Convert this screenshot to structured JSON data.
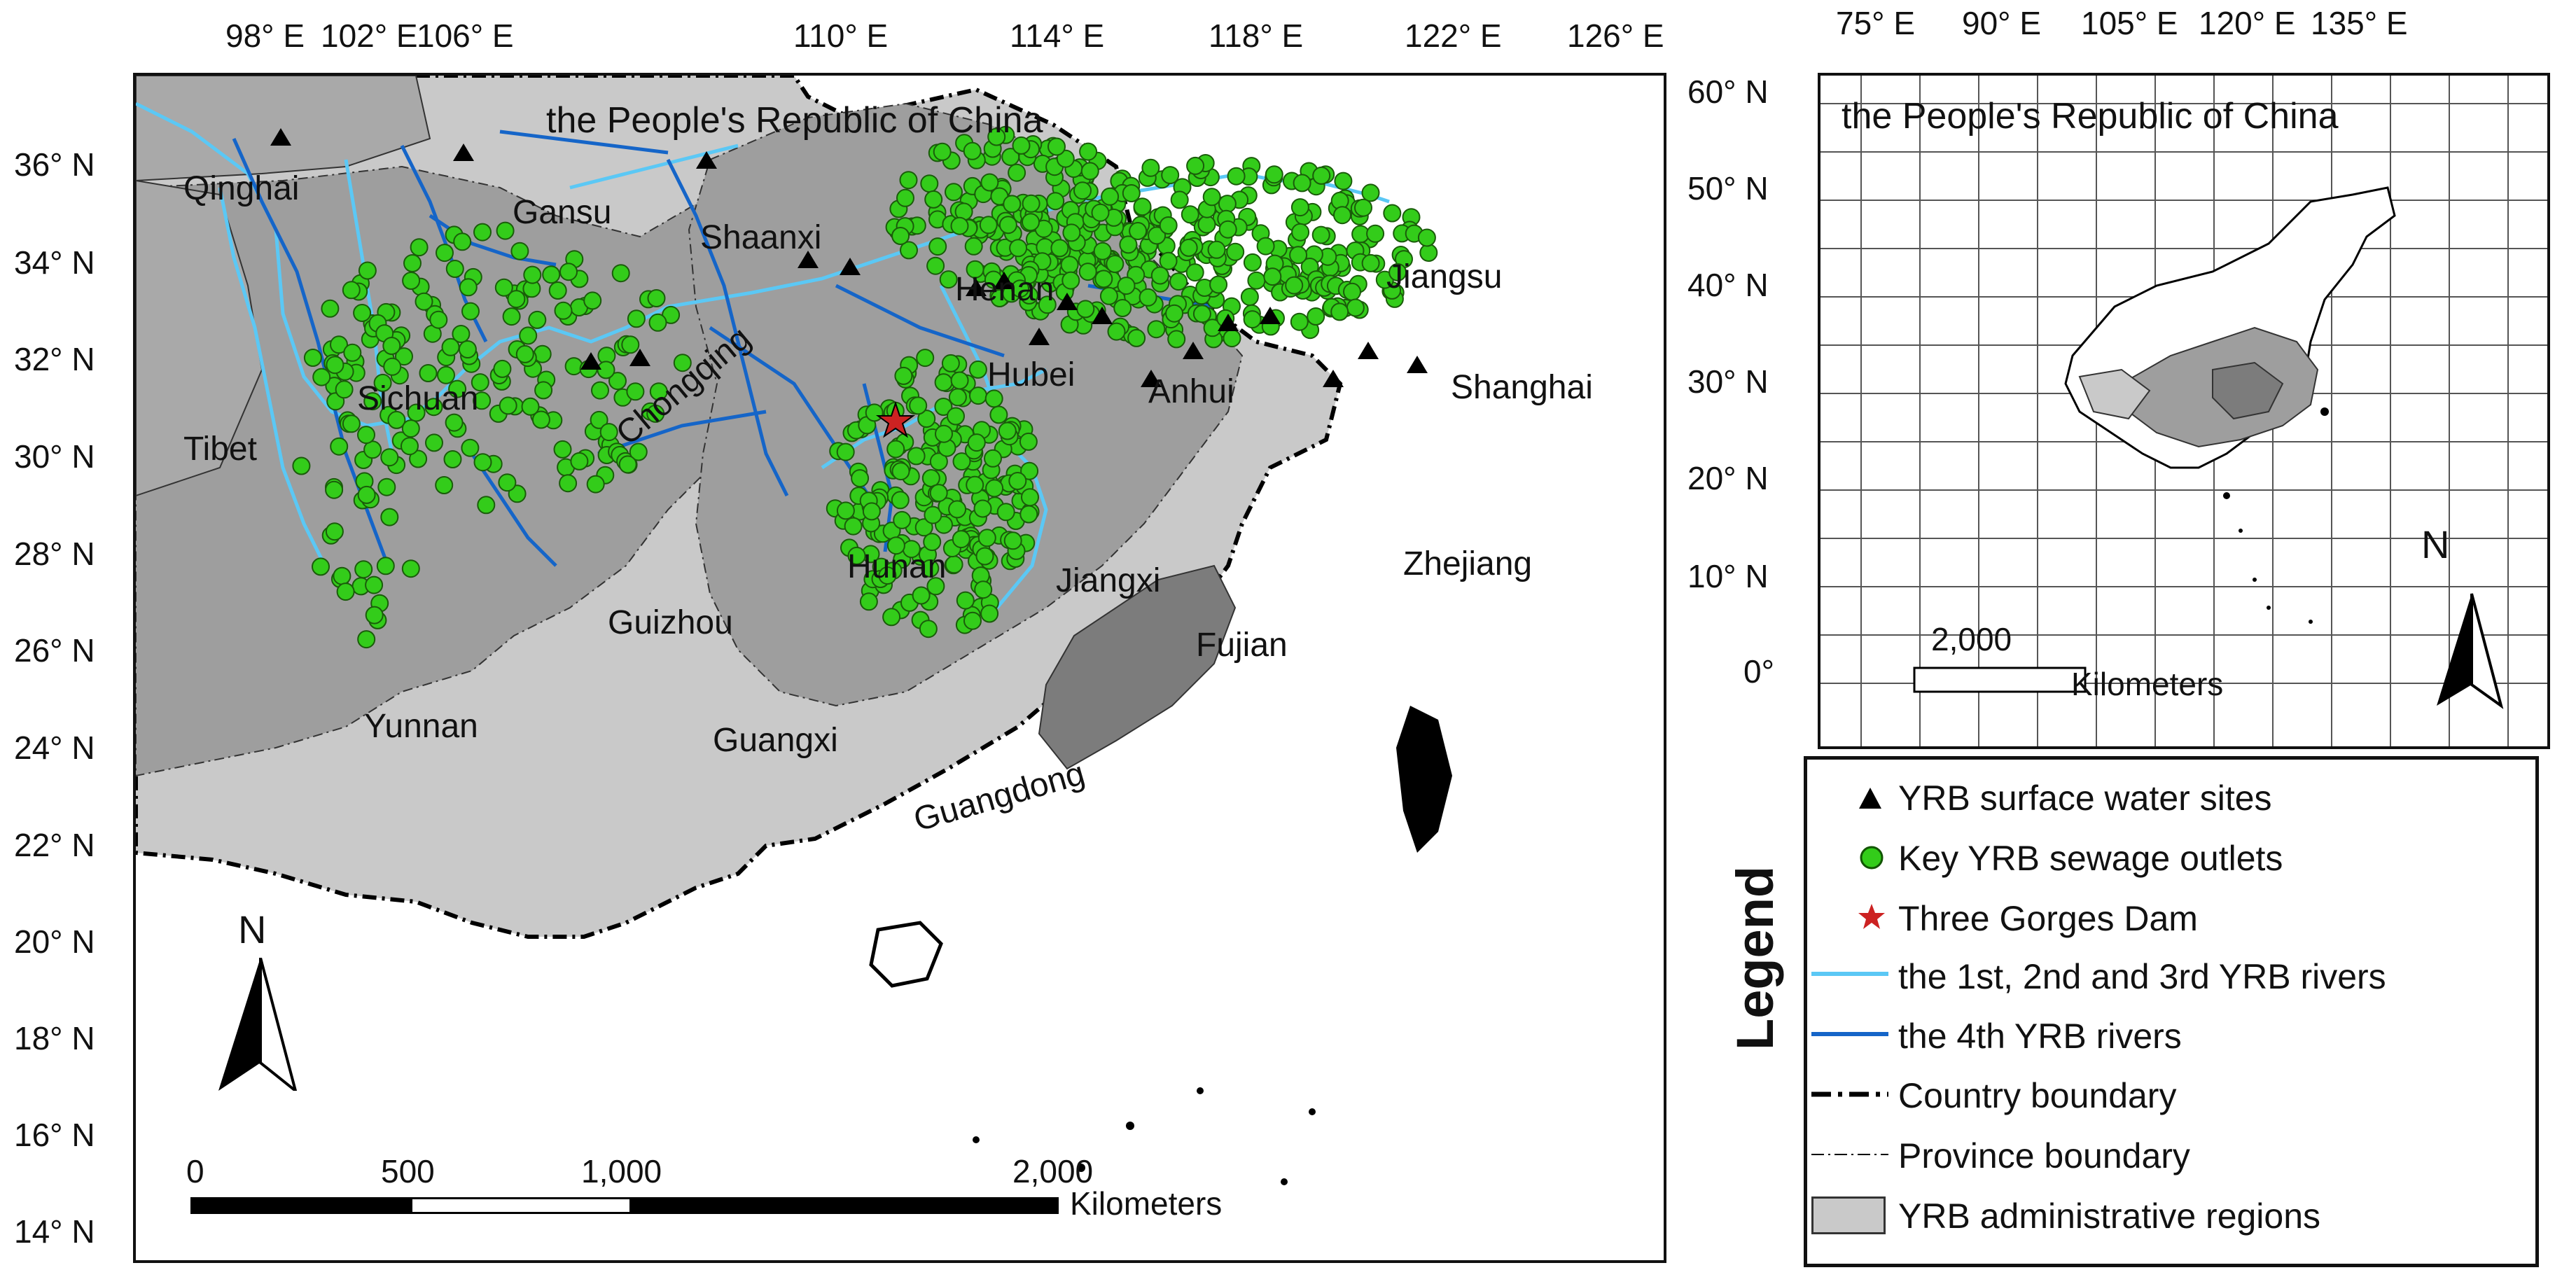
{
  "main_map": {
    "title": "the People's Republic of China",
    "lon_labels": [
      "98° E",
      "102° E",
      "106° E",
      "110° E",
      "114° E",
      "118° E",
      "122° E",
      "126° E"
    ],
    "lat_labels": [
      "36° N",
      "34° N",
      "32° N",
      "30° N",
      "28° N",
      "26° N",
      "24° N",
      "22° N",
      "20° N",
      "18° N",
      "16° N",
      "14° N"
    ],
    "regions": [
      {
        "name": "Qinghai",
        "yrb": false
      },
      {
        "name": "Gansu",
        "yrb": false
      },
      {
        "name": "Shaanxi",
        "yrb": true
      },
      {
        "name": "Henan",
        "yrb": true
      },
      {
        "name": "Jiangsu",
        "yrb": true
      },
      {
        "name": "Hubei",
        "yrb": true
      },
      {
        "name": "Anhui",
        "yrb": true
      },
      {
        "name": "Shanghai",
        "yrb": true
      },
      {
        "name": "Sichuan",
        "yrb": true
      },
      {
        "name": "Tibet",
        "yrb": false
      },
      {
        "name": "Chongqing",
        "yrb": true
      },
      {
        "name": "Hunan",
        "yrb": true
      },
      {
        "name": "Jiangxi",
        "yrb": true
      },
      {
        "name": "Zhejiang",
        "yrb": false
      },
      {
        "name": "Guizhou",
        "yrb": true
      },
      {
        "name": "Fujian",
        "yrb": false
      },
      {
        "name": "Yunnan",
        "yrb": true
      },
      {
        "name": "Guangxi",
        "yrb": false
      },
      {
        "name": "Guangdong",
        "yrb": false
      }
    ],
    "north_arrow": "N",
    "scale_bar": {
      "ticks": [
        "0",
        "500",
        "1,000",
        "2,000"
      ],
      "unit": "Kilometers"
    }
  },
  "inset_map": {
    "title": "the People's Republic of China",
    "lon_labels": [
      "75° E",
      "90° E",
      "105° E",
      "120° E",
      "135° E"
    ],
    "lat_labels": [
      "60° N",
      "50° N",
      "40° N",
      "30° N",
      "20° N",
      "10° N",
      "0°"
    ],
    "north_arrow": "N",
    "scale_bar": {
      "ticks": [
        "2,000"
      ],
      "unit": "Kilometers"
    }
  },
  "legend": {
    "title": "Legend",
    "items": [
      {
        "symbol": "triangle",
        "label": "YRB surface water sites"
      },
      {
        "symbol": "circle",
        "label": "Key YRB sewage outlets"
      },
      {
        "symbol": "star",
        "label": "Three Gorges Dam"
      },
      {
        "symbol": "light-line",
        "label": "the 1st, 2nd and 3rd YRB rivers"
      },
      {
        "symbol": "dark-line",
        "label": "the 4th YRB rivers"
      },
      {
        "symbol": "dash-dot",
        "label": "Country boundary"
      },
      {
        "symbol": "thin-dash",
        "label": "Province boundary"
      },
      {
        "symbol": "box",
        "label": "YRB administrative regions"
      }
    ]
  },
  "colors": {
    "yrb_region": "#9e9e9e",
    "non_yrb_region": "#c9c9c9",
    "dark_region": "#7c7c7c",
    "sea": "#ffffff",
    "light_river": "#5bc8f5",
    "dark_river": "#1565c8",
    "sewage_outlet": "#33cc1a",
    "site_marker": "#000000",
    "dam_marker": "#cc2222"
  }
}
